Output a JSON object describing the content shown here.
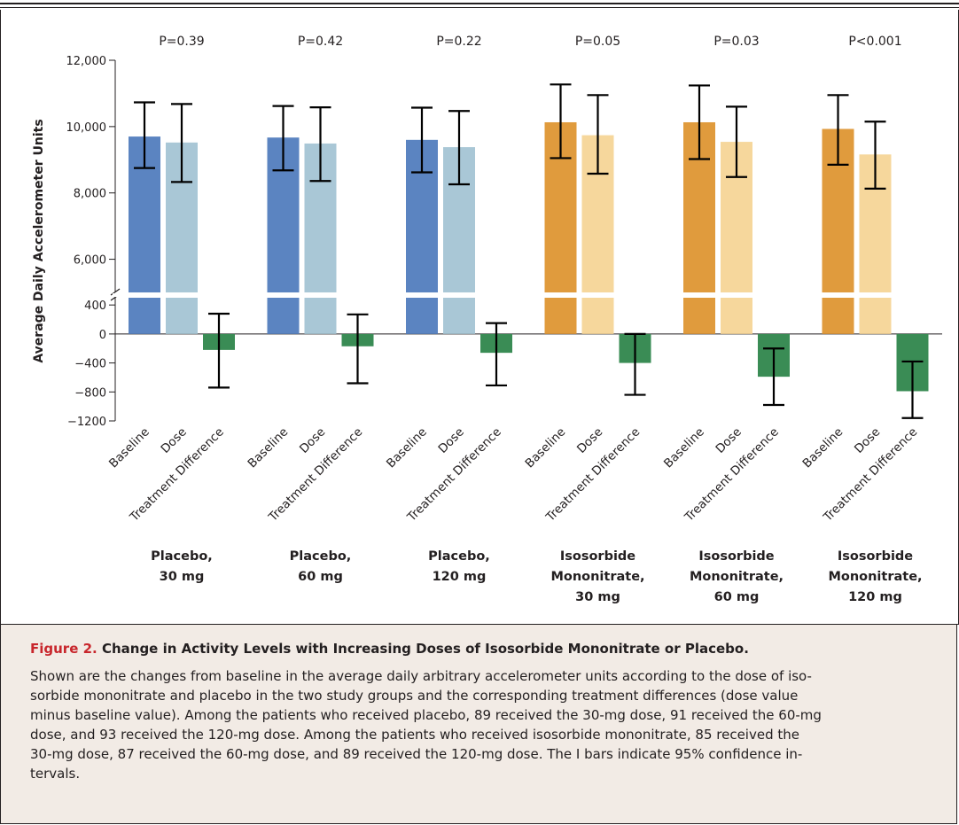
{
  "chart_data": {
    "type": "bar",
    "ylabel": "Average Daily Accelerometer Units",
    "upper_axis": {
      "ylim": [
        5000,
        12000
      ],
      "ticks": [
        6000,
        8000,
        10000,
        12000
      ],
      "tick_labels": [
        "6,000",
        "8,000",
        "10,000",
        "12,000"
      ]
    },
    "lower_axis": {
      "ylim": [
        -1200,
        500
      ],
      "ticks": [
        -1200,
        -800,
        -400,
        0,
        400
      ],
      "tick_labels": [
        "−1200",
        "−800",
        "−400",
        "0",
        "400"
      ]
    },
    "bar_labels": [
      "Baseline",
      "Dose",
      "Treatment Difference"
    ],
    "groups": [
      {
        "name_lines": [
          "Placebo,",
          "30 mg"
        ],
        "p_value": "P=0.39",
        "baseline": {
          "value": 9700,
          "ci": [
            8750,
            10730
          ]
        },
        "dose": {
          "value": 9520,
          "ci": [
            8330,
            10680
          ]
        },
        "difference": {
          "value": -220,
          "ci": [
            -740,
            280
          ]
        }
      },
      {
        "name_lines": [
          "Placebo,",
          "60  mg"
        ],
        "p_value": "P=0.42",
        "baseline": {
          "value": 9670,
          "ci": [
            8680,
            10620
          ]
        },
        "dose": {
          "value": 9490,
          "ci": [
            8360,
            10580
          ]
        },
        "difference": {
          "value": -170,
          "ci": [
            -680,
            270
          ]
        }
      },
      {
        "name_lines": [
          "Placebo,",
          "120 mg"
        ],
        "p_value": "P=0.22",
        "baseline": {
          "value": 9600,
          "ci": [
            8620,
            10570
          ]
        },
        "dose": {
          "value": 9380,
          "ci": [
            8260,
            10470
          ]
        },
        "difference": {
          "value": -260,
          "ci": [
            -710,
            150
          ]
        }
      },
      {
        "name_lines": [
          "Isosorbide",
          "Mononitrate,",
          "30 mg"
        ],
        "p_value": "P=0.05",
        "baseline": {
          "value": 10130,
          "ci": [
            9050,
            11270
          ]
        },
        "dose": {
          "value": 9740,
          "ci": [
            8580,
            10950
          ]
        },
        "difference": {
          "value": -400,
          "ci": [
            -840,
            0
          ]
        }
      },
      {
        "name_lines": [
          "Isosorbide",
          "Mononitrate,",
          "60 mg"
        ],
        "p_value": "P=0.03",
        "baseline": {
          "value": 10130,
          "ci": [
            9020,
            11240
          ]
        },
        "dose": {
          "value": 9540,
          "ci": [
            8480,
            10600
          ]
        },
        "difference": {
          "value": -590,
          "ci": [
            -980,
            -200
          ]
        }
      },
      {
        "name_lines": [
          "Isosorbide",
          "Mononitrate,",
          "120 mg"
        ],
        "p_value": "P<0.001",
        "baseline": {
          "value": 9930,
          "ci": [
            8850,
            10950
          ]
        },
        "dose": {
          "value": 9160,
          "ci": [
            8130,
            10150
          ]
        },
        "difference": {
          "value": -790,
          "ci": [
            -1160,
            -380
          ]
        }
      }
    ],
    "colors": {
      "placebo_baseline": "#5b84c1",
      "placebo_dose": "#a9c7d6",
      "ismn_baseline": "#e09b3d",
      "ismn_dose": "#f6d79c",
      "difference": "#3a8c55",
      "error_bar": "#000000"
    }
  },
  "caption": {
    "figure_label": "Figure 2.",
    "title": " Change in Activity Levels with Increasing Doses of Isosorbide Mononitrate or Placebo.",
    "body_lines": [
      "Shown are the changes from baseline in the average daily arbitrary accelerometer units according to the dose of iso-",
      "sorbide mononitrate and placebo in the two study groups and the corresponding treatment differences (dose value",
      "minus baseline value). Among the patients who received placebo, 89 received the 30-mg dose, 91 received the 60-mg",
      "dose, and 93 received the 120-mg dose. Among the patients who received isosorbide mononitrate, 85 received the",
      "30-mg dose, 87 received the 60-mg dose, and 89 received the 120-mg dose. The I bars indicate 95% confidence in-",
      "tervals."
    ]
  }
}
